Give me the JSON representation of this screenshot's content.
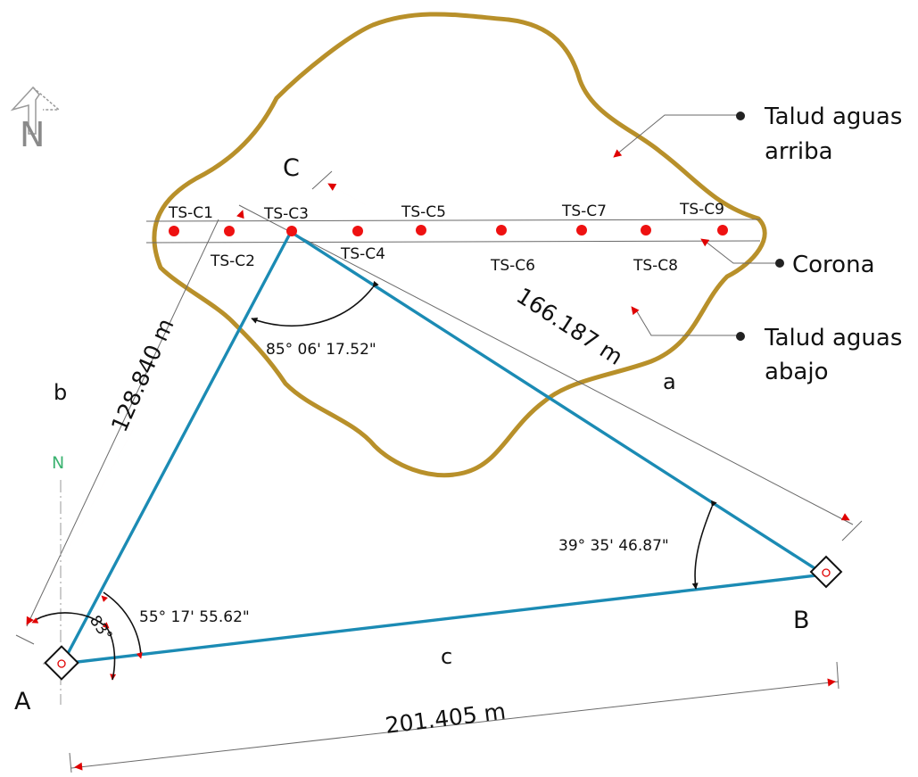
{
  "vertices": {
    "A": "A",
    "B": "B",
    "C": "C"
  },
  "sides": {
    "a": "a",
    "b": "b",
    "c": "c"
  },
  "distances": {
    "ac": "128.840 m",
    "bc": "166.187 m",
    "ab": "201.405 m"
  },
  "angles": {
    "at_C": "85° 06' 17.52\"",
    "at_B": "39° 35' 46.87\"",
    "at_A": "55° 17' 55.62\"",
    "azimuth_A": "83°"
  },
  "north": {
    "compass_letter": "N",
    "line_letter": "N"
  },
  "stations": {
    "top": [
      "TS-C1",
      "TS-C3",
      "TS-C5",
      "TS-C7",
      "TS-C9"
    ],
    "bottom": [
      "TS-C2",
      "TS-C4",
      "TS-C6",
      "TS-C8"
    ]
  },
  "legend": {
    "upstream_line1": "Talud aguas",
    "upstream_line2": "arriba",
    "crest": "Corona",
    "downstream_line1": "Talud aguas",
    "downstream_line2": "abajo"
  },
  "colors": {
    "triangle": "#1b8bb4",
    "boundary": "#b8902a",
    "arrows": "#e00000",
    "north_line": "#3cb371"
  }
}
